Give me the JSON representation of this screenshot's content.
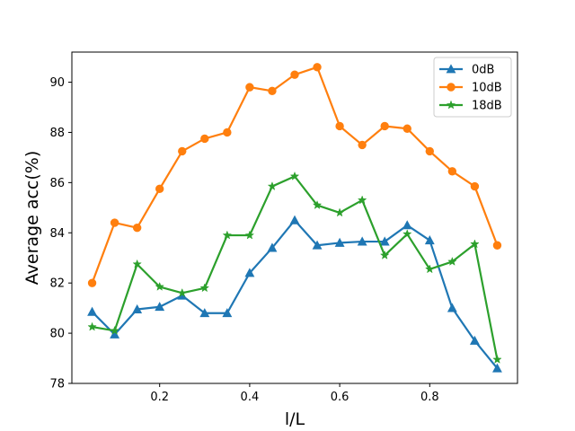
{
  "chart_data": {
    "type": "line",
    "xlabel": "l/L",
    "ylabel": "Average acc(%)",
    "xlim": [
      0.005,
      0.995
    ],
    "ylim": [
      78,
      91.2
    ],
    "xticks": [
      0.2,
      0.4,
      0.6,
      0.8
    ],
    "xtick_labels": [
      "0.2",
      "0.4",
      "0.6",
      "0.8"
    ],
    "yticks": [
      78,
      80,
      82,
      84,
      86,
      88,
      90
    ],
    "ytick_labels": [
      "78",
      "80",
      "82",
      "84",
      "86",
      "88",
      "90"
    ],
    "grid": false,
    "legend_position": "top-right",
    "x": [
      0.05,
      0.1,
      0.15,
      0.2,
      0.25,
      0.3,
      0.35,
      0.4,
      0.45,
      0.5,
      0.55,
      0.6,
      0.65,
      0.7,
      0.75,
      0.8,
      0.85,
      0.9,
      0.95
    ],
    "series": [
      {
        "name": "0dB",
        "color": "#1f77b4",
        "marker": "triangle",
        "values": [
          80.85,
          79.95,
          80.95,
          81.05,
          81.5,
          80.8,
          80.8,
          82.4,
          83.4,
          84.5,
          83.5,
          83.6,
          83.65,
          83.65,
          84.3,
          83.7,
          81.0,
          79.7,
          78.6
        ]
      },
      {
        "name": "10dB",
        "color": "#ff7f0e",
        "marker": "circle",
        "values": [
          82.0,
          84.4,
          84.2,
          85.75,
          87.25,
          87.75,
          88.0,
          89.8,
          89.65,
          90.3,
          90.6,
          88.25,
          87.5,
          88.25,
          88.15,
          87.25,
          86.45,
          85.85,
          83.5
        ]
      },
      {
        "name": "18dB",
        "color": "#2ca02c",
        "marker": "star",
        "values": [
          80.25,
          80.1,
          82.75,
          81.85,
          81.6,
          81.8,
          83.9,
          83.9,
          85.85,
          86.25,
          85.1,
          84.8,
          85.3,
          83.1,
          83.95,
          82.55,
          82.85,
          83.55,
          78.95
        ]
      }
    ]
  }
}
